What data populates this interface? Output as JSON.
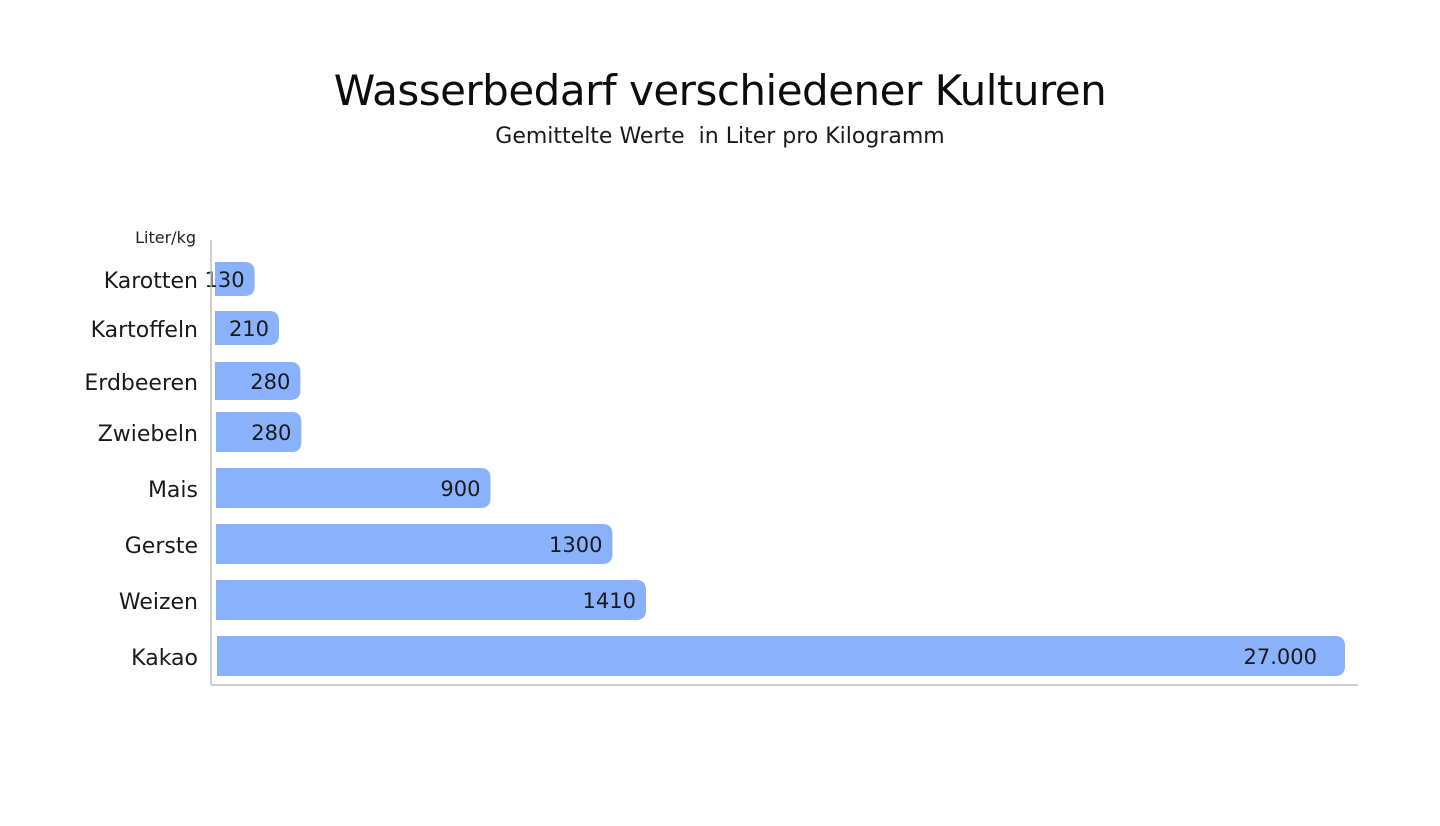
{
  "chart_data": {
    "type": "bar",
    "orientation": "horizontal",
    "title": "Wasserbedarf verschiedener Kulturen",
    "subtitle": "Gemittelte Werte  in Liter pro Kilogramm",
    "ylabel": "Liter/kg",
    "xlabel": "",
    "categories": [
      "Karotten",
      "Kartoffeln",
      "Erdbeeren",
      "Zwiebeln",
      "Mais",
      "Gerste",
      "Weizen",
      "Kakao"
    ],
    "values": [
      130,
      210,
      280,
      280,
      900,
      1300,
      1410,
      27000
    ],
    "value_labels": [
      "130",
      "210",
      "280",
      "280",
      "900",
      "1300",
      "1410",
      "27.000"
    ],
    "bar_color": "#8ab2fc",
    "axis_color": "#bdbdbd",
    "scale": "broken",
    "grid": false,
    "legend": "none"
  }
}
